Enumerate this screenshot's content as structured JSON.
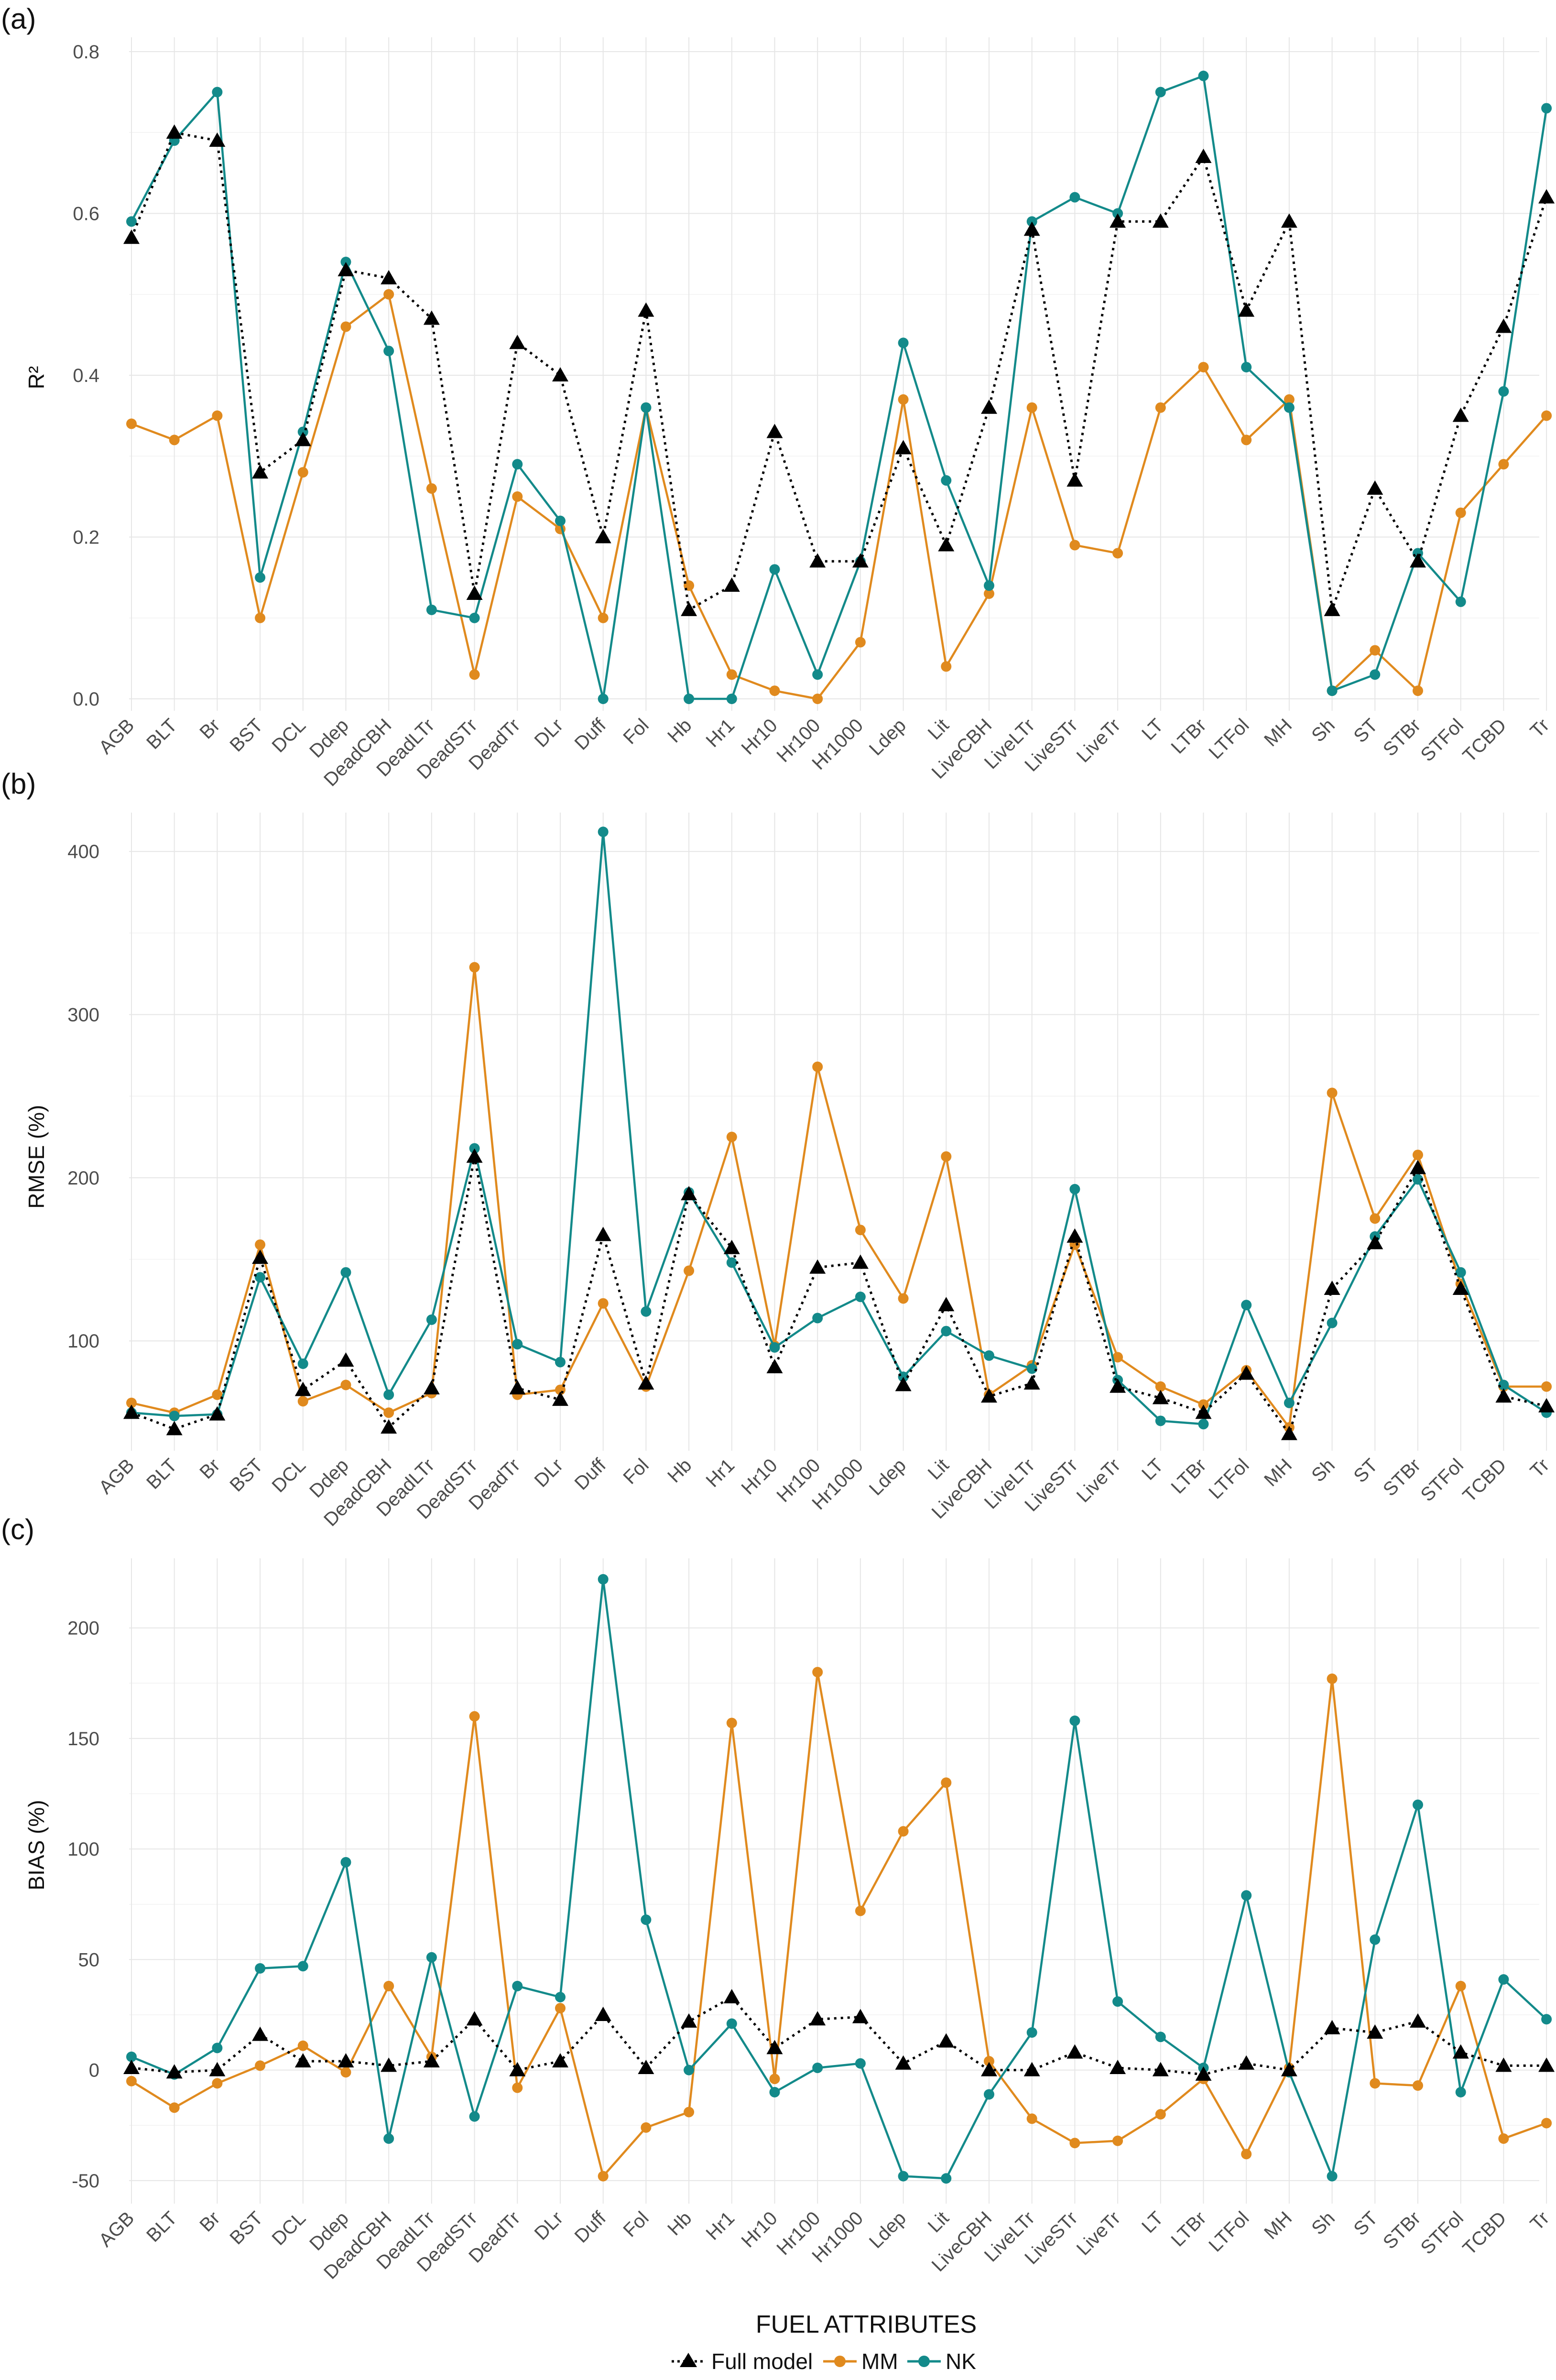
{
  "figure": {
    "x_axis_title": "FUEL ATTRIBUTES",
    "legend": [
      "Full model",
      "MM",
      "NK"
    ],
    "colors": {
      "Full model": "#000000",
      "MM": "#e08a1e",
      "NK": "#138a8a"
    }
  },
  "chart_data": [
    {
      "type": "line",
      "panel_label": "(a)",
      "ylabel": "R²",
      "ylim": [
        0,
        0.8
      ],
      "yticks": [
        0.0,
        0.2,
        0.4,
        0.6,
        0.8
      ],
      "ytick_labels": [
        "0.0",
        "0.2",
        "0.4",
        "0.6",
        "0.8"
      ],
      "categories": [
        "AGB",
        "BLT",
        "Br",
        "BST",
        "DCL",
        "Ddep",
        "DeadCBH",
        "DeadLTr",
        "DeadSTr",
        "DeadTr",
        "DLr",
        "Duff",
        "Fol",
        "Hb",
        "Hr1",
        "Hr10",
        "Hr100",
        "Hr1000",
        "Ldep",
        "Lit",
        "LiveCBH",
        "LiveLTr",
        "LiveSTr",
        "LiveTr",
        "LT",
        "LTBr",
        "LTFol",
        "MH",
        "Sh",
        "ST",
        "STBr",
        "STFol",
        "TCBD",
        "Tr"
      ],
      "series": [
        {
          "name": "Full model",
          "values": [
            0.57,
            0.7,
            0.69,
            0.28,
            0.32,
            0.53,
            0.52,
            0.47,
            0.13,
            0.44,
            0.4,
            0.2,
            0.48,
            0.11,
            0.14,
            0.33,
            0.17,
            0.17,
            0.31,
            0.19,
            0.36,
            0.58,
            0.27,
            0.59,
            0.59,
            0.67,
            0.48,
            0.59,
            0.11,
            0.26,
            0.17,
            0.35,
            0.46,
            0.62
          ]
        },
        {
          "name": "MM",
          "values": [
            0.34,
            0.32,
            0.35,
            0.1,
            0.28,
            0.46,
            0.5,
            0.26,
            0.03,
            0.25,
            0.21,
            0.1,
            0.36,
            0.14,
            0.03,
            0.01,
            0.0,
            0.07,
            0.37,
            0.04,
            0.13,
            0.36,
            0.19,
            0.18,
            0.36,
            0.41,
            0.32,
            0.37,
            0.01,
            0.06,
            0.01,
            0.23,
            0.29,
            0.35
          ]
        },
        {
          "name": "NK",
          "values": [
            0.59,
            0.69,
            0.75,
            0.15,
            0.33,
            0.54,
            0.43,
            0.11,
            0.1,
            0.29,
            0.22,
            0.0,
            0.36,
            0.0,
            0.0,
            0.16,
            0.03,
            0.17,
            0.44,
            0.27,
            0.14,
            0.59,
            0.62,
            0.6,
            0.75,
            0.77,
            0.41,
            0.36,
            0.01,
            0.03,
            0.18,
            0.12,
            0.38,
            0.73
          ]
        }
      ]
    },
    {
      "type": "line",
      "panel_label": "(b)",
      "ylabel": "RMSE (%)",
      "ylim": [
        40,
        415
      ],
      "yticks": [
        100,
        200,
        300,
        400
      ],
      "ytick_labels": [
        "100",
        "200",
        "300",
        "400"
      ],
      "categories": [
        "AGB",
        "BLT",
        "Br",
        "BST",
        "DCL",
        "Ddep",
        "DeadCBH",
        "DeadLTr",
        "DeadSTr",
        "DeadTr",
        "DLr",
        "Duff",
        "Fol",
        "Hb",
        "Hr1",
        "Hr10",
        "Hr100",
        "Hr1000",
        "Ldep",
        "Lit",
        "LiveCBH",
        "LiveLTr",
        "LiveSTr",
        "LiveTr",
        "LT",
        "LTBr",
        "LTFol",
        "MH",
        "Sh",
        "ST",
        "STBr",
        "STFol",
        "TCBD",
        "Tr"
      ],
      "series": [
        {
          "name": "Full model",
          "values": [
            56,
            46,
            55,
            151,
            70,
            88,
            47,
            71,
            213,
            71,
            64,
            165,
            74,
            190,
            157,
            84,
            145,
            148,
            73,
            122,
            66,
            74,
            164,
            72,
            65,
            56,
            80,
            43,
            132,
            160,
            206,
            132,
            66,
            60
          ]
        },
        {
          "name": "MM",
          "values": [
            62,
            56,
            67,
            159,
            63,
            73,
            56,
            68,
            329,
            67,
            70,
            123,
            72,
            143,
            225,
            97,
            268,
            168,
            126,
            213,
            67,
            85,
            159,
            90,
            72,
            61,
            82,
            47,
            252,
            175,
            214,
            135,
            72,
            72
          ]
        },
        {
          "name": "NK",
          "values": [
            56,
            54,
            55,
            139,
            86,
            142,
            67,
            113,
            218,
            98,
            87,
            412,
            118,
            191,
            148,
            96,
            114,
            127,
            78,
            106,
            91,
            83,
            193,
            76,
            51,
            49,
            122,
            62,
            111,
            164,
            199,
            142,
            73,
            56
          ]
        }
      ]
    },
    {
      "type": "line",
      "panel_label": "(c)",
      "ylabel": "BIAS (%)",
      "ylim": [
        -55,
        225
      ],
      "yticks": [
        -50,
        0,
        50,
        100,
        150,
        200
      ],
      "ytick_labels": [
        "-50",
        "0",
        "50",
        "100",
        "150",
        "200"
      ],
      "categories": [
        "AGB",
        "BLT",
        "Br",
        "BST",
        "DCL",
        "Ddep",
        "DeadCBH",
        "DeadLTr",
        "DeadSTr",
        "DeadTr",
        "DLr",
        "Duff",
        "Fol",
        "Hb",
        "Hr1",
        "Hr10",
        "Hr100",
        "Hr1000",
        "Ldep",
        "Lit",
        "LiveCBH",
        "LiveLTr",
        "LiveSTr",
        "LiveTr",
        "LT",
        "LTBr",
        "LTFol",
        "MH",
        "Sh",
        "ST",
        "STBr",
        "STFol",
        "TCBD",
        "Tr"
      ],
      "series": [
        {
          "name": "Full model",
          "values": [
            1,
            -1,
            0,
            16,
            4,
            4,
            2,
            4,
            23,
            0,
            4,
            25,
            1,
            22,
            33,
            10,
            23,
            24,
            3,
            13,
            0,
            0,
            8,
            1,
            0,
            -2,
            3,
            0,
            19,
            17,
            22,
            8,
            2,
            2
          ]
        },
        {
          "name": "MM",
          "values": [
            -5,
            -17,
            -6,
            2,
            11,
            -1,
            38,
            6,
            160,
            -8,
            28,
            -48,
            -26,
            -19,
            157,
            -4,
            180,
            72,
            108,
            130,
            4,
            -22,
            -33,
            -32,
            -20,
            -4,
            -38,
            1,
            177,
            -6,
            -7,
            38,
            -31,
            -24
          ]
        },
        {
          "name": "NK",
          "values": [
            6,
            -2,
            10,
            46,
            47,
            94,
            -31,
            51,
            -21,
            38,
            33,
            222,
            68,
            0,
            21,
            -10,
            1,
            3,
            -48,
            -49,
            -11,
            17,
            158,
            31,
            15,
            1,
            79,
            -1,
            -48,
            59,
            120,
            -10,
            41,
            23
          ]
        }
      ]
    }
  ]
}
